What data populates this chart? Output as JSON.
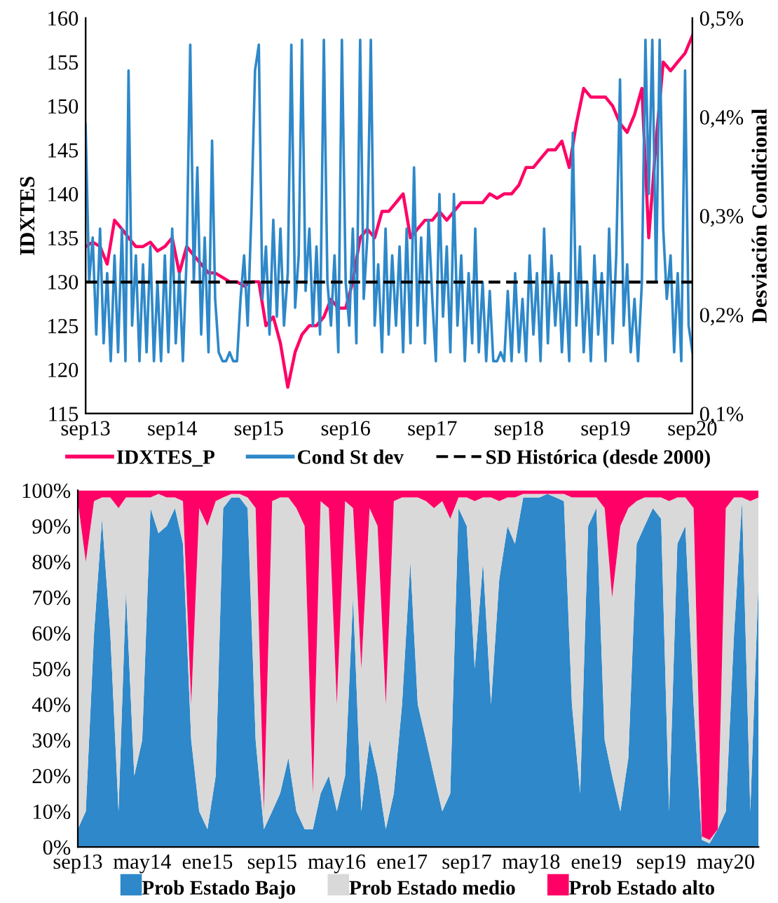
{
  "chart_data": [
    {
      "type": "line",
      "ylabel": "IDXTES",
      "y2label": "Desviación Condicional",
      "legend": "bottom",
      "x": [
        "2013-09",
        "2013-10",
        "2013-11",
        "2013-12",
        "2014-01",
        "2014-02",
        "2014-03",
        "2014-04",
        "2014-05",
        "2014-06",
        "2014-07",
        "2014-08",
        "2014-09",
        "2014-10",
        "2014-11",
        "2014-12",
        "2015-01",
        "2015-02",
        "2015-03",
        "2015-04",
        "2015-05",
        "2015-06",
        "2015-07",
        "2015-08",
        "2015-09",
        "2015-10",
        "2015-11",
        "2015-12",
        "2016-01",
        "2016-02",
        "2016-03",
        "2016-04",
        "2016-05",
        "2016-06",
        "2016-07",
        "2016-08",
        "2016-09",
        "2016-10",
        "2016-11",
        "2016-12",
        "2017-01",
        "2017-02",
        "2017-03",
        "2017-04",
        "2017-05",
        "2017-06",
        "2017-07",
        "2017-08",
        "2017-09",
        "2017-10",
        "2017-11",
        "2017-12",
        "2018-01",
        "2018-02",
        "2018-03",
        "2018-04",
        "2018-05",
        "2018-06",
        "2018-07",
        "2018-08",
        "2018-09",
        "2018-10",
        "2018-11",
        "2018-12",
        "2019-01",
        "2019-02",
        "2019-03",
        "2019-04",
        "2019-05",
        "2019-06",
        "2019-07",
        "2019-08",
        "2019-09",
        "2019-10",
        "2019-11",
        "2019-12",
        "2020-01",
        "2020-02",
        "2020-03",
        "2020-04",
        "2020-05",
        "2020-06",
        "2020-07",
        "2020-08",
        "2020-09"
      ],
      "xlim": [
        "2013-09",
        "2020-09"
      ],
      "xticks": [
        {
          "value": "2013-09",
          "label": "sep13"
        },
        {
          "value": "2014-09",
          "label": "sep14"
        },
        {
          "value": "2015-09",
          "label": "sep15"
        },
        {
          "value": "2016-09",
          "label": "sep16"
        },
        {
          "value": "2017-09",
          "label": "sep17"
        },
        {
          "value": "2018-09",
          "label": "sep18"
        },
        {
          "value": "2019-09",
          "label": "sep19"
        },
        {
          "value": "2020-09",
          "label": "sep20"
        }
      ],
      "ylim": [
        115,
        160
      ],
      "yticks": [
        115,
        120,
        125,
        130,
        135,
        140,
        145,
        150,
        155,
        160
      ],
      "y2lim": [
        0.1,
        0.5
      ],
      "y2ticks": [
        {
          "value": 0.1,
          "label": "0,1%"
        },
        {
          "value": 0.2,
          "label": "0,2%"
        },
        {
          "value": 0.3,
          "label": "0,3%"
        },
        {
          "value": 0.4,
          "label": "0,4%"
        },
        {
          "value": 0.5,
          "label": "0,5%"
        }
      ],
      "series": [
        {
          "name": "IDXTES_P",
          "color": "#ff0066",
          "values": [
            134,
            134.5,
            134,
            132,
            137,
            136,
            135,
            134,
            134,
            134.5,
            133.5,
            134,
            135,
            131,
            134,
            133,
            132,
            131,
            131,
            130.5,
            130,
            130,
            129.5,
            130,
            130,
            125,
            126,
            123,
            118,
            122,
            124,
            125,
            125,
            126,
            128,
            127,
            127,
            130,
            135,
            136,
            135,
            138,
            138,
            139,
            140,
            135,
            136,
            137,
            137,
            138,
            137,
            138,
            139,
            139,
            139,
            139,
            140,
            139.5,
            140,
            140,
            141,
            143,
            143,
            144,
            145,
            145,
            146,
            143,
            148,
            152,
            151,
            151,
            151,
            150,
            148,
            147,
            149,
            152,
            135,
            146,
            155,
            154,
            155,
            156,
            158
          ]
        },
        {
          "name": "Cond St dev",
          "color": "#2e88c9",
          "axis": "y2",
          "x": [
            "2013-09-01",
            "2013-09-16",
            "2013-10-01",
            "2013-10-16",
            "2013-11-01",
            "2013-11-16",
            "2013-12-01",
            "2013-12-16",
            "2014-01-01",
            "2014-01-16",
            "2014-02-01",
            "2014-02-16",
            "2014-03-01",
            "2014-03-16",
            "2014-04-01",
            "2014-04-16",
            "2014-05-01",
            "2014-05-16",
            "2014-06-01",
            "2014-06-16",
            "2014-07-01",
            "2014-07-16",
            "2014-08-01",
            "2014-08-16",
            "2014-09-01",
            "2014-09-16",
            "2014-10-01",
            "2014-10-16",
            "2014-11-01",
            "2014-11-16",
            "2014-12-01",
            "2014-12-16",
            "2015-01-01",
            "2015-01-16",
            "2015-02-01",
            "2015-02-16",
            "2015-03-01",
            "2015-03-16",
            "2015-04-01",
            "2015-04-16",
            "2015-05-01",
            "2015-05-16",
            "2015-06-01",
            "2015-06-16",
            "2015-07-01",
            "2015-07-16",
            "2015-08-01",
            "2015-08-16",
            "2015-09-01",
            "2015-09-16",
            "2015-10-01",
            "2015-10-16",
            "2015-11-01",
            "2015-11-16",
            "2015-12-01",
            "2015-12-16",
            "2016-01-01",
            "2016-01-16",
            "2016-02-01",
            "2016-02-16",
            "2016-03-01",
            "2016-03-16",
            "2016-04-01",
            "2016-04-16",
            "2016-05-01",
            "2016-05-16",
            "2016-06-01",
            "2016-06-16",
            "2016-07-01",
            "2016-07-16",
            "2016-08-01",
            "2016-08-16",
            "2016-09-01",
            "2016-09-16",
            "2016-10-01",
            "2016-10-16",
            "2016-11-01",
            "2016-11-16",
            "2016-12-01",
            "2016-12-16",
            "2017-01-01",
            "2017-01-16",
            "2017-02-01",
            "2017-02-16",
            "2017-03-01",
            "2017-03-16",
            "2017-04-01",
            "2017-04-16",
            "2017-05-01",
            "2017-05-16",
            "2017-06-01",
            "2017-06-16",
            "2017-07-01",
            "2017-07-16",
            "2017-08-01",
            "2017-08-16",
            "2017-09-01",
            "2017-09-16",
            "2017-10-01",
            "2017-10-16",
            "2017-11-01",
            "2017-11-16",
            "2017-12-01",
            "2017-12-16",
            "2018-01-01",
            "2018-01-16",
            "2018-02-01",
            "2018-02-16",
            "2018-03-01",
            "2018-03-16",
            "2018-04-01",
            "2018-04-16",
            "2018-05-01",
            "2018-05-16",
            "2018-06-01",
            "2018-06-16",
            "2018-07-01",
            "2018-07-16",
            "2018-08-01",
            "2018-08-16",
            "2018-09-01",
            "2018-09-16",
            "2018-10-01",
            "2018-10-16",
            "2018-11-01",
            "2018-11-16",
            "2018-12-01",
            "2018-12-16",
            "2019-01-01",
            "2019-01-16",
            "2019-02-01",
            "2019-02-16",
            "2019-03-01",
            "2019-03-16",
            "2019-04-01",
            "2019-04-16",
            "2019-05-01",
            "2019-05-16",
            "2019-06-01",
            "2019-06-16",
            "2019-07-01",
            "2019-07-16",
            "2019-08-01",
            "2019-08-16",
            "2019-09-01",
            "2019-09-16",
            "2019-10-01",
            "2019-10-16",
            "2019-11-01",
            "2019-11-16",
            "2019-12-01",
            "2019-12-16",
            "2020-01-01",
            "2020-01-16",
            "2020-02-01",
            "2020-02-16",
            "2020-03-01",
            "2020-03-16",
            "2020-04-01",
            "2020-04-16",
            "2020-05-01",
            "2020-05-16",
            "2020-06-01",
            "2020-06-16",
            "2020-07-01",
            "2020-07-16",
            "2020-08-01",
            "2020-08-16",
            "2020-09-01"
          ],
          "values": [
            0.393,
            0.233,
            0.278,
            0.18,
            0.287,
            0.171,
            0.242,
            0.153,
            0.26,
            0.162,
            0.287,
            0.153,
            0.447,
            0.189,
            0.26,
            0.153,
            0.251,
            0.162,
            0.269,
            0.153,
            0.233,
            0.153,
            0.26,
            0.162,
            0.287,
            0.171,
            0.242,
            0.153,
            0.26,
            0.473,
            0.233,
            0.349,
            0.18,
            0.278,
            0.162,
            0.376,
            0.216,
            0.162,
            0.153,
            0.153,
            0.162,
            0.153,
            0.153,
            0.216,
            0.26,
            0.189,
            0.304,
            0.447,
            0.473,
            0.216,
            0.269,
            0.18,
            0.296,
            0.198,
            0.287,
            0.189,
            0.242,
            0.473,
            0.207,
            0.26,
            0.478,
            0.224,
            0.287,
            0.189,
            0.269,
            0.18,
            0.478,
            0.233,
            0.189,
            0.26,
            0.162,
            0.478,
            0.233,
            0.189,
            0.287,
            0.171,
            0.478,
            0.216,
            0.278,
            0.478,
            0.189,
            0.251,
            0.162,
            0.287,
            0.18,
            0.26,
            0.189,
            0.269,
            0.162,
            0.287,
            0.171,
            0.349,
            0.189,
            0.278,
            0.171,
            0.296,
            0.216,
            0.153,
            0.322,
            0.198,
            0.269,
            0.162,
            0.322,
            0.189,
            0.26,
            0.153,
            0.242,
            0.171,
            0.287,
            0.162,
            0.233,
            0.153,
            0.224,
            0.153,
            0.153,
            0.162,
            0.153,
            0.224,
            0.153,
            0.242,
            0.162,
            0.216,
            0.153,
            0.26,
            0.18,
            0.242,
            0.153,
            0.287,
            0.171,
            0.26,
            0.189,
            0.242,
            0.162,
            0.233,
            0.153,
            0.384,
            0.189,
            0.269,
            0.162,
            0.233,
            0.153,
            0.26,
            0.18,
            0.242,
            0.153,
            0.287,
            0.171,
            0.26,
            0.438,
            0.189,
            0.251,
            0.162,
            0.216,
            0.153,
            0.233,
            0.478,
            0.322,
            0.478,
            0.233,
            0.478,
            0.287,
            0.216,
            0.26,
            0.162,
            0.242,
            0.153,
            0.447,
            0.189,
            0.162
          ]
        }
      ],
      "ref_lines": [
        {
          "axis": "y2",
          "value": 0.233,
          "label": "SD Histórica (desde 2000)",
          "color": "#000000",
          "line_style": "dashed"
        }
      ]
    },
    {
      "type": "area",
      "stacked": true,
      "legend": "bottom",
      "x": [
        "2013-09",
        "2013-10",
        "2013-11",
        "2013-12",
        "2014-01",
        "2014-02",
        "2014-03",
        "2014-04",
        "2014-05",
        "2014-06",
        "2014-07",
        "2014-08",
        "2014-09",
        "2014-10",
        "2014-11",
        "2014-12",
        "2015-01",
        "2015-02",
        "2015-03",
        "2015-04",
        "2015-05",
        "2015-06",
        "2015-07",
        "2015-08",
        "2015-09",
        "2015-10",
        "2015-11",
        "2015-12",
        "2016-01",
        "2016-02",
        "2016-03",
        "2016-04",
        "2016-05",
        "2016-06",
        "2016-07",
        "2016-08",
        "2016-09",
        "2016-10",
        "2016-11",
        "2016-12",
        "2017-01",
        "2017-02",
        "2017-03",
        "2017-04",
        "2017-05",
        "2017-06",
        "2017-07",
        "2017-08",
        "2017-09",
        "2017-10",
        "2017-11",
        "2017-12",
        "2018-01",
        "2018-02",
        "2018-03",
        "2018-04",
        "2018-05",
        "2018-06",
        "2018-07",
        "2018-08",
        "2018-09",
        "2018-10",
        "2018-11",
        "2018-12",
        "2019-01",
        "2019-02",
        "2019-03",
        "2019-04",
        "2019-05",
        "2019-06",
        "2019-07",
        "2019-08",
        "2019-09",
        "2019-10",
        "2019-11",
        "2019-12",
        "2020-01",
        "2020-02",
        "2020-03",
        "2020-04",
        "2020-05",
        "2020-06",
        "2020-07",
        "2020-08",
        "2020-09"
      ],
      "xlim": [
        "2013-09",
        "2020-09"
      ],
      "xticks": [
        {
          "value": "2013-09",
          "label": "sep13"
        },
        {
          "value": "2014-05",
          "label": "may14"
        },
        {
          "value": "2015-01",
          "label": "ene15"
        },
        {
          "value": "2015-09",
          "label": "sep15"
        },
        {
          "value": "2016-05",
          "label": "may16"
        },
        {
          "value": "2017-01",
          "label": "ene17"
        },
        {
          "value": "2017-09",
          "label": "sep17"
        },
        {
          "value": "2018-05",
          "label": "may18"
        },
        {
          "value": "2019-01",
          "label": "ene19"
        },
        {
          "value": "2019-09",
          "label": "sep19"
        },
        {
          "value": "2020-05",
          "label": "may20"
        }
      ],
      "ylim": [
        0,
        100
      ],
      "yticks": [
        {
          "value": 0,
          "label": "0%"
        },
        {
          "value": 10,
          "label": "10%"
        },
        {
          "value": 20,
          "label": "20%"
        },
        {
          "value": 30,
          "label": "30%"
        },
        {
          "value": 40,
          "label": "40%"
        },
        {
          "value": 50,
          "label": "50%"
        },
        {
          "value": 60,
          "label": "60%"
        },
        {
          "value": 70,
          "label": "70%"
        },
        {
          "value": 80,
          "label": "80%"
        },
        {
          "value": 90,
          "label": "90%"
        },
        {
          "value": 100,
          "label": "100%"
        }
      ],
      "series": [
        {
          "name": "Prob Estado Bajo",
          "color": "#2e88c9",
          "values": [
            5,
            10,
            60,
            92,
            60,
            10,
            72,
            20,
            30,
            95,
            88,
            90,
            95,
            85,
            30,
            10,
            5,
            20,
            95,
            98,
            98,
            95,
            30,
            5,
            10,
            15,
            25,
            10,
            5,
            5,
            15,
            20,
            10,
            20,
            70,
            10,
            30,
            20,
            5,
            15,
            40,
            80,
            40,
            30,
            20,
            10,
            15,
            95,
            90,
            50,
            80,
            40,
            75,
            90,
            85,
            98,
            98,
            98,
            99,
            98,
            97,
            40,
            15,
            90,
            95,
            30,
            20,
            10,
            25,
            85,
            90,
            95,
            92,
            10,
            85,
            90,
            40,
            2,
            1,
            5,
            10,
            60,
            97,
            10,
            75
          ]
        },
        {
          "name": "Prob Estado medio",
          "color": "#d9d9d9",
          "values": [
            92,
            70,
            37,
            6,
            38,
            85,
            26,
            78,
            68,
            3,
            11,
            8,
            3,
            12,
            10,
            85,
            85,
            77,
            3,
            1,
            1,
            3,
            65,
            5,
            87,
            83,
            73,
            85,
            85,
            10,
            82,
            75,
            30,
            77,
            25,
            40,
            65,
            70,
            35,
            82,
            58,
            18,
            58,
            67,
            75,
            87,
            77,
            3,
            8,
            47,
            18,
            58,
            22,
            8,
            13,
            1,
            1,
            1,
            0,
            1,
            2,
            58,
            83,
            8,
            3,
            65,
            50,
            80,
            70,
            12,
            8,
            3,
            6,
            87,
            13,
            8,
            55,
            1,
            1,
            0,
            85,
            38,
            1,
            87,
            23
          ]
        },
        {
          "name": "Prob Estado alto",
          "color": "#ff0066",
          "values": [
            3,
            20,
            3,
            2,
            2,
            5,
            2,
            2,
            2,
            2,
            1,
            2,
            2,
            3,
            60,
            5,
            10,
            3,
            2,
            1,
            1,
            2,
            5,
            90,
            3,
            2,
            2,
            5,
            10,
            85,
            3,
            5,
            60,
            3,
            5,
            50,
            5,
            10,
            60,
            3,
            2,
            2,
            2,
            3,
            5,
            3,
            8,
            2,
            2,
            3,
            2,
            2,
            3,
            2,
            2,
            1,
            1,
            1,
            1,
            1,
            1,
            2,
            2,
            2,
            2,
            5,
            30,
            10,
            5,
            3,
            2,
            2,
            2,
            3,
            2,
            2,
            5,
            97,
            98,
            95,
            5,
            2,
            2,
            3,
            2
          ]
        }
      ]
    }
  ]
}
